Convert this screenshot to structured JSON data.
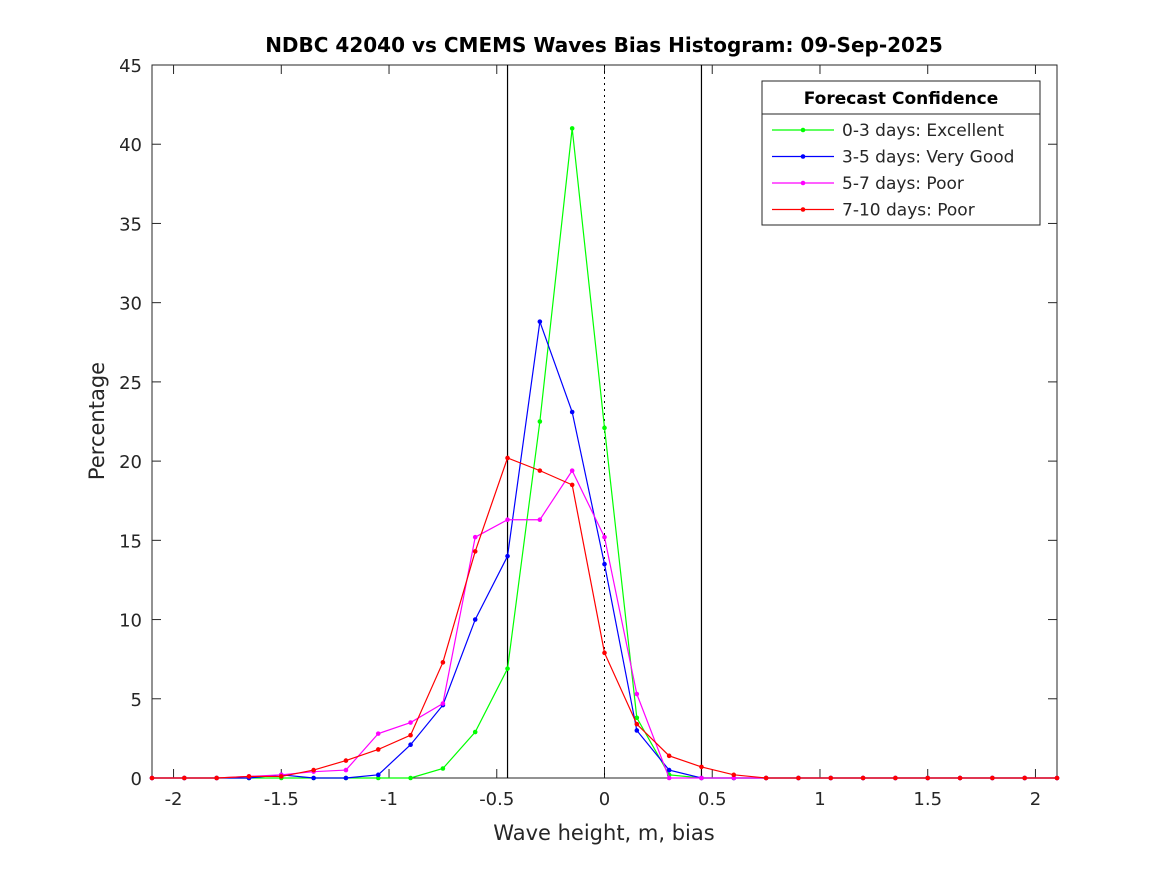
{
  "chart_data": {
    "type": "line",
    "title": "NDBC 42040 vs CMEMS Waves Bias Histogram: 09-Sep-2025",
    "xlabel": "Wave height, m, bias",
    "ylabel": "Percentage",
    "xlim": [
      -2.1,
      2.1
    ],
    "ylim": [
      0,
      45
    ],
    "xticks": [
      -2,
      -1.5,
      -1,
      -0.5,
      0,
      0.5,
      1,
      1.5,
      2
    ],
    "xtick_labels": [
      "-2",
      "-1.5",
      "-1",
      "-0.5",
      "0",
      "0.5",
      "1",
      "1.5",
      "2"
    ],
    "yticks": [
      0,
      5,
      10,
      15,
      20,
      25,
      30,
      35,
      40,
      45
    ],
    "ytick_labels": [
      "0",
      "5",
      "10",
      "15",
      "20",
      "25",
      "30",
      "35",
      "40",
      "45"
    ],
    "reference_lines": {
      "solid": [
        -0.45,
        0.45
      ],
      "dotted": [
        0
      ]
    },
    "legend": {
      "title": "Forecast Confidence",
      "placement": "top-right"
    },
    "x": [
      -2.1,
      -1.95,
      -1.8,
      -1.65,
      -1.5,
      -1.35,
      -1.2,
      -1.05,
      -0.9,
      -0.75,
      -0.6,
      -0.45,
      -0.3,
      -0.15,
      0,
      0.15,
      0.3,
      0.45,
      0.6,
      0.75,
      0.9,
      1.05,
      1.2,
      1.35,
      1.5,
      1.65,
      1.8,
      1.95,
      2.1
    ],
    "series": [
      {
        "name": "0-3 days: Excellent",
        "color": "#00ff00",
        "values": [
          0,
          0,
          0,
          0,
          0,
          0,
          0,
          0,
          0,
          0.6,
          2.9,
          6.9,
          22.5,
          41.0,
          22.1,
          3.8,
          0.2,
          0,
          0,
          0,
          0,
          0,
          0,
          0,
          0,
          0,
          0,
          0,
          0
        ]
      },
      {
        "name": "3-5 days: Very Good",
        "color": "#0000ff",
        "values": [
          0,
          0,
          0,
          0,
          0.2,
          0,
          0,
          0.2,
          2.1,
          4.6,
          10.0,
          14.0,
          28.8,
          23.1,
          13.5,
          3.0,
          0.5,
          0,
          0,
          0,
          0,
          0,
          0,
          0,
          0,
          0,
          0,
          0,
          0
        ]
      },
      {
        "name": "5-7 days: Poor",
        "color": "#ff00ff",
        "values": [
          0,
          0,
          0,
          0.1,
          0.2,
          0.4,
          0.5,
          2.8,
          3.5,
          4.7,
          15.2,
          16.3,
          16.3,
          19.4,
          15.2,
          5.3,
          0,
          0,
          0,
          0,
          0,
          0,
          0,
          0,
          0,
          0,
          0,
          0,
          0
        ]
      },
      {
        "name": "7-10 days: Poor",
        "color": "#ff0000",
        "values": [
          0,
          0,
          0,
          0.1,
          0.1,
          0.5,
          1.1,
          1.8,
          2.7,
          7.3,
          14.3,
          20.2,
          19.4,
          18.5,
          7.9,
          3.4,
          1.4,
          0.7,
          0.2,
          0,
          0,
          0,
          0,
          0,
          0,
          0,
          0,
          0,
          0
        ]
      }
    ]
  }
}
